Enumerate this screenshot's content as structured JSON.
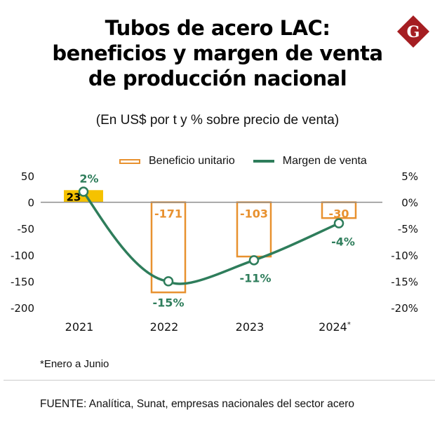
{
  "header": {
    "title_lines": [
      "Tubos de acero LAC:",
      "beneficios y margen de venta",
      "de producción nacional"
    ],
    "subtitle": "(En US$ por t y % sobre precio de venta)",
    "logo_letter": "G",
    "logo_color": "#a51e22"
  },
  "legend": {
    "bar_label": "Beneficio unitario",
    "line_label": "Margen de venta"
  },
  "footer": {
    "footnote": "*Enero a Junio",
    "source": "FUENTE: Analítica, Sunat, empresas nacionales del sector acero"
  },
  "chart_data": {
    "type": "bar+line",
    "title": "Tubos de acero LAC: beneficios y margen de venta de producción nacional",
    "subtitle": "(En US$ por t y % sobre precio de venta)",
    "categories": [
      "2021",
      "2022",
      "2023",
      "2024*"
    ],
    "series": [
      {
        "name": "Beneficio unitario",
        "type": "bar",
        "axis": "left",
        "values": [
          23,
          -171,
          -103,
          -30
        ],
        "labels": [
          "23",
          "-171",
          "-103",
          "-30"
        ],
        "color": "#e8912f",
        "highlight_color": "#f5c200"
      },
      {
        "name": "Margen de venta",
        "type": "line",
        "axis": "right",
        "values": [
          2,
          -15,
          -11,
          -4
        ],
        "labels": [
          "2%",
          "-15%",
          "-11%",
          "-4%"
        ],
        "color": "#2e7d5b"
      }
    ],
    "left_axis": {
      "ylim": [
        -200,
        50
      ],
      "ticks": [
        50,
        0,
        -50,
        -100,
        -150,
        -200
      ],
      "tick_labels": [
        "50",
        "0",
        "-50",
        "-100",
        "-150",
        "-200"
      ]
    },
    "right_axis": {
      "ylim": [
        -20,
        5
      ],
      "ticks": [
        5,
        0,
        -5,
        -10,
        -15,
        -20
      ],
      "tick_labels": [
        "5%",
        "0%",
        "-5%",
        "-10%",
        "-15%",
        "-20%"
      ]
    },
    "grid": false,
    "legend_position": "top-right",
    "note": "*Enero a Junio"
  }
}
